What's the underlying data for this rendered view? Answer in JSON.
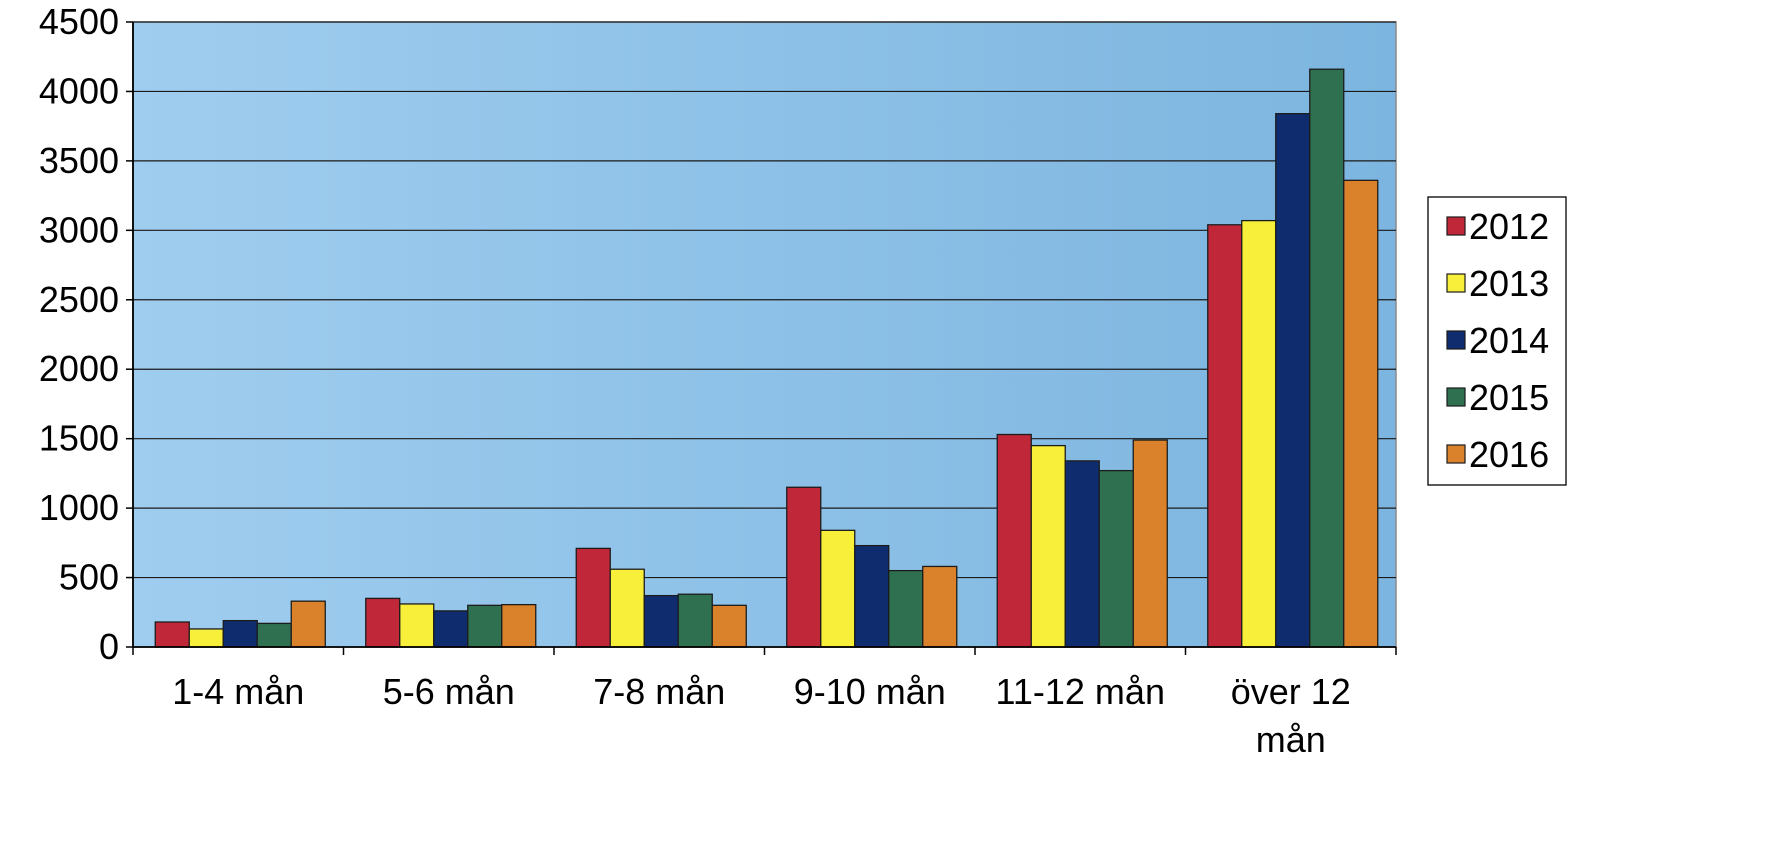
{
  "chart_data": {
    "type": "bar",
    "categories": [
      "1-4 mån",
      "5-6 mån",
      "7-8 mån",
      "9-10 mån",
      "11-12 mån",
      "över 12 mån"
    ],
    "series": [
      {
        "name": "2012",
        "color": "#c0283a",
        "values": [
          180,
          350,
          710,
          1150,
          1530,
          3040
        ]
      },
      {
        "name": "2013",
        "color": "#f7ef3a",
        "values": [
          130,
          310,
          560,
          840,
          1450,
          3070
        ]
      },
      {
        "name": "2014",
        "color": "#0f2c6e",
        "values": [
          190,
          260,
          370,
          730,
          1340,
          3840
        ]
      },
      {
        "name": "2015",
        "color": "#2e7050",
        "values": [
          170,
          300,
          380,
          550,
          1270,
          4160
        ]
      },
      {
        "name": "2016",
        "color": "#d9822b",
        "values": [
          330,
          305,
          300,
          580,
          1490,
          3360
        ]
      }
    ],
    "ylim": [
      0,
      4500
    ],
    "yticks": [
      0,
      500,
      1000,
      1500,
      2000,
      2500,
      3000,
      3500,
      4000,
      4500
    ],
    "grid": true,
    "legend_position": "right",
    "plot_background": "#8fc3e6"
  }
}
